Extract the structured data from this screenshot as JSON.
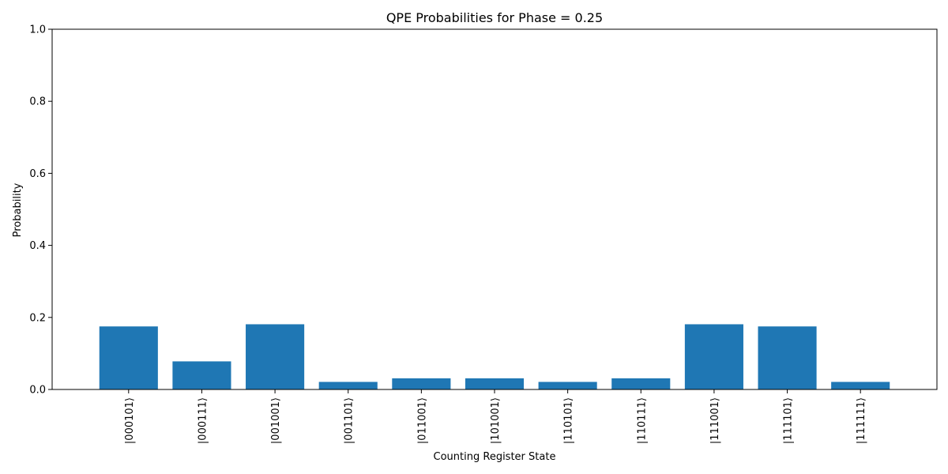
{
  "chart_data": {
    "type": "bar",
    "title": "QPE Probabilities for Phase = 0.25",
    "xlabel": "Counting Register State",
    "ylabel": "Probability",
    "ylim": [
      0,
      1.0
    ],
    "yticks": [
      "0.0",
      "0.2",
      "0.4",
      "0.6",
      "0.8",
      "1.0"
    ],
    "grid": false,
    "bar_color": "#1f77b4",
    "categories": [
      "|000101⟩",
      "|000111⟩",
      "|001001⟩",
      "|001101⟩",
      "|011001⟩",
      "|101001⟩",
      "|110101⟩",
      "|110111⟩",
      "|111001⟩",
      "|111101⟩",
      "|111111⟩"
    ],
    "values": [
      0.175,
      0.078,
      0.181,
      0.021,
      0.031,
      0.031,
      0.021,
      0.031,
      0.181,
      0.175,
      0.021
    ]
  }
}
